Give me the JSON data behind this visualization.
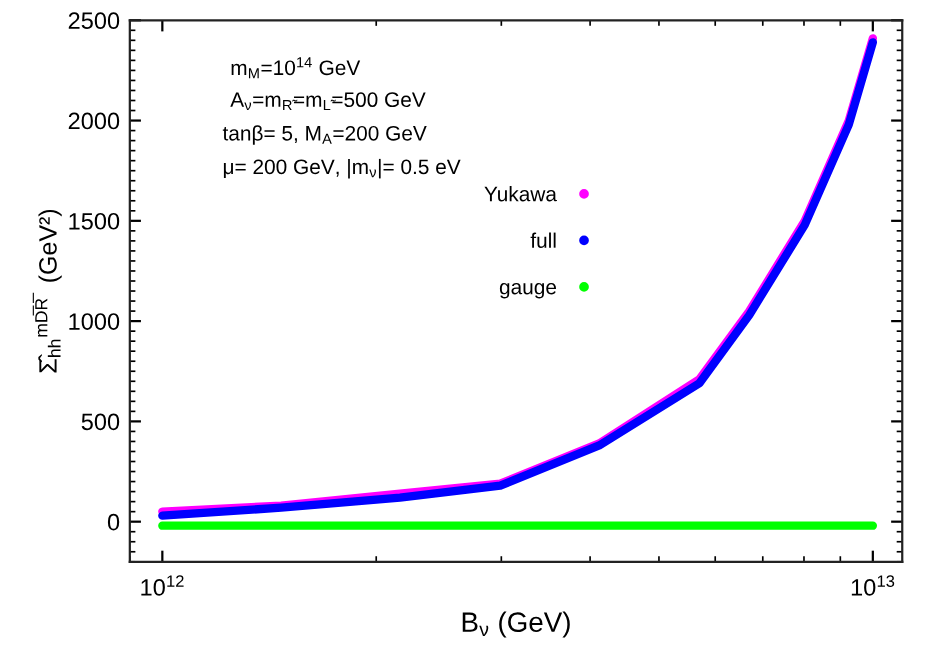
{
  "chart_data": {
    "type": "line",
    "xlabel": "B$_{ν}$ (GeV)",
    "ylabel": "Σ̂$_{hh}$$^{mD̅R̅}$  (GeV²)",
    "log": "x",
    "xlim": [
      900000000000.0,
      11000000000000.0
    ],
    "xticks": [
      {
        "value": 1000000000000.0,
        "label": "10$^{12}$"
      },
      {
        "value": 10000000000000.0,
        "label": "10$^{13}$"
      }
    ],
    "ylim": [
      -200,
      2500
    ],
    "yticks": [
      0,
      500,
      1000,
      1500,
      2000,
      2500
    ],
    "grid": false,
    "legend": "center",
    "annotations": [
      "m$_{M}$=10$^{14}$ GeV",
      "A$_{ν}$=m$_{R̃}$=m$_{L̃}$=500 GeV",
      "tanβ= 5, M$_{A}$=200 GeV",
      "μ= 200 GeV, |m$_{ν}$|= 0.5 eV"
    ],
    "series": [
      {
        "name": "Yukawa",
        "color": "#ff00ff",
        "x": [
          1000000000000.0,
          1470000000000.0,
          2160000000000.0,
          2990000000000.0,
          4120000000000.0,
          5700000000000.0,
          6700000000000.0,
          8020000000000.0,
          9250000000000.0,
          10000000000000.0
        ],
        "values": [
          50,
          80,
          140,
          190,
          390,
          710,
          1050,
          1500,
          2000,
          2410
        ]
      },
      {
        "name": "full",
        "color": "#0000ff",
        "x": [
          1000000000000.0,
          1470000000000.0,
          2160000000000.0,
          2990000000000.0,
          4120000000000.0,
          5700000000000.0,
          6700000000000.0,
          8020000000000.0,
          9250000000000.0,
          10000000000000.0
        ],
        "values": [
          30,
          70,
          120,
          180,
          380,
          690,
          1030,
          1480,
          1980,
          2390
        ]
      },
      {
        "name": "gauge",
        "color": "#00ff00",
        "x": [
          1000000000000.0,
          10000000000000.0
        ],
        "values": [
          -20,
          -20
        ]
      }
    ]
  }
}
